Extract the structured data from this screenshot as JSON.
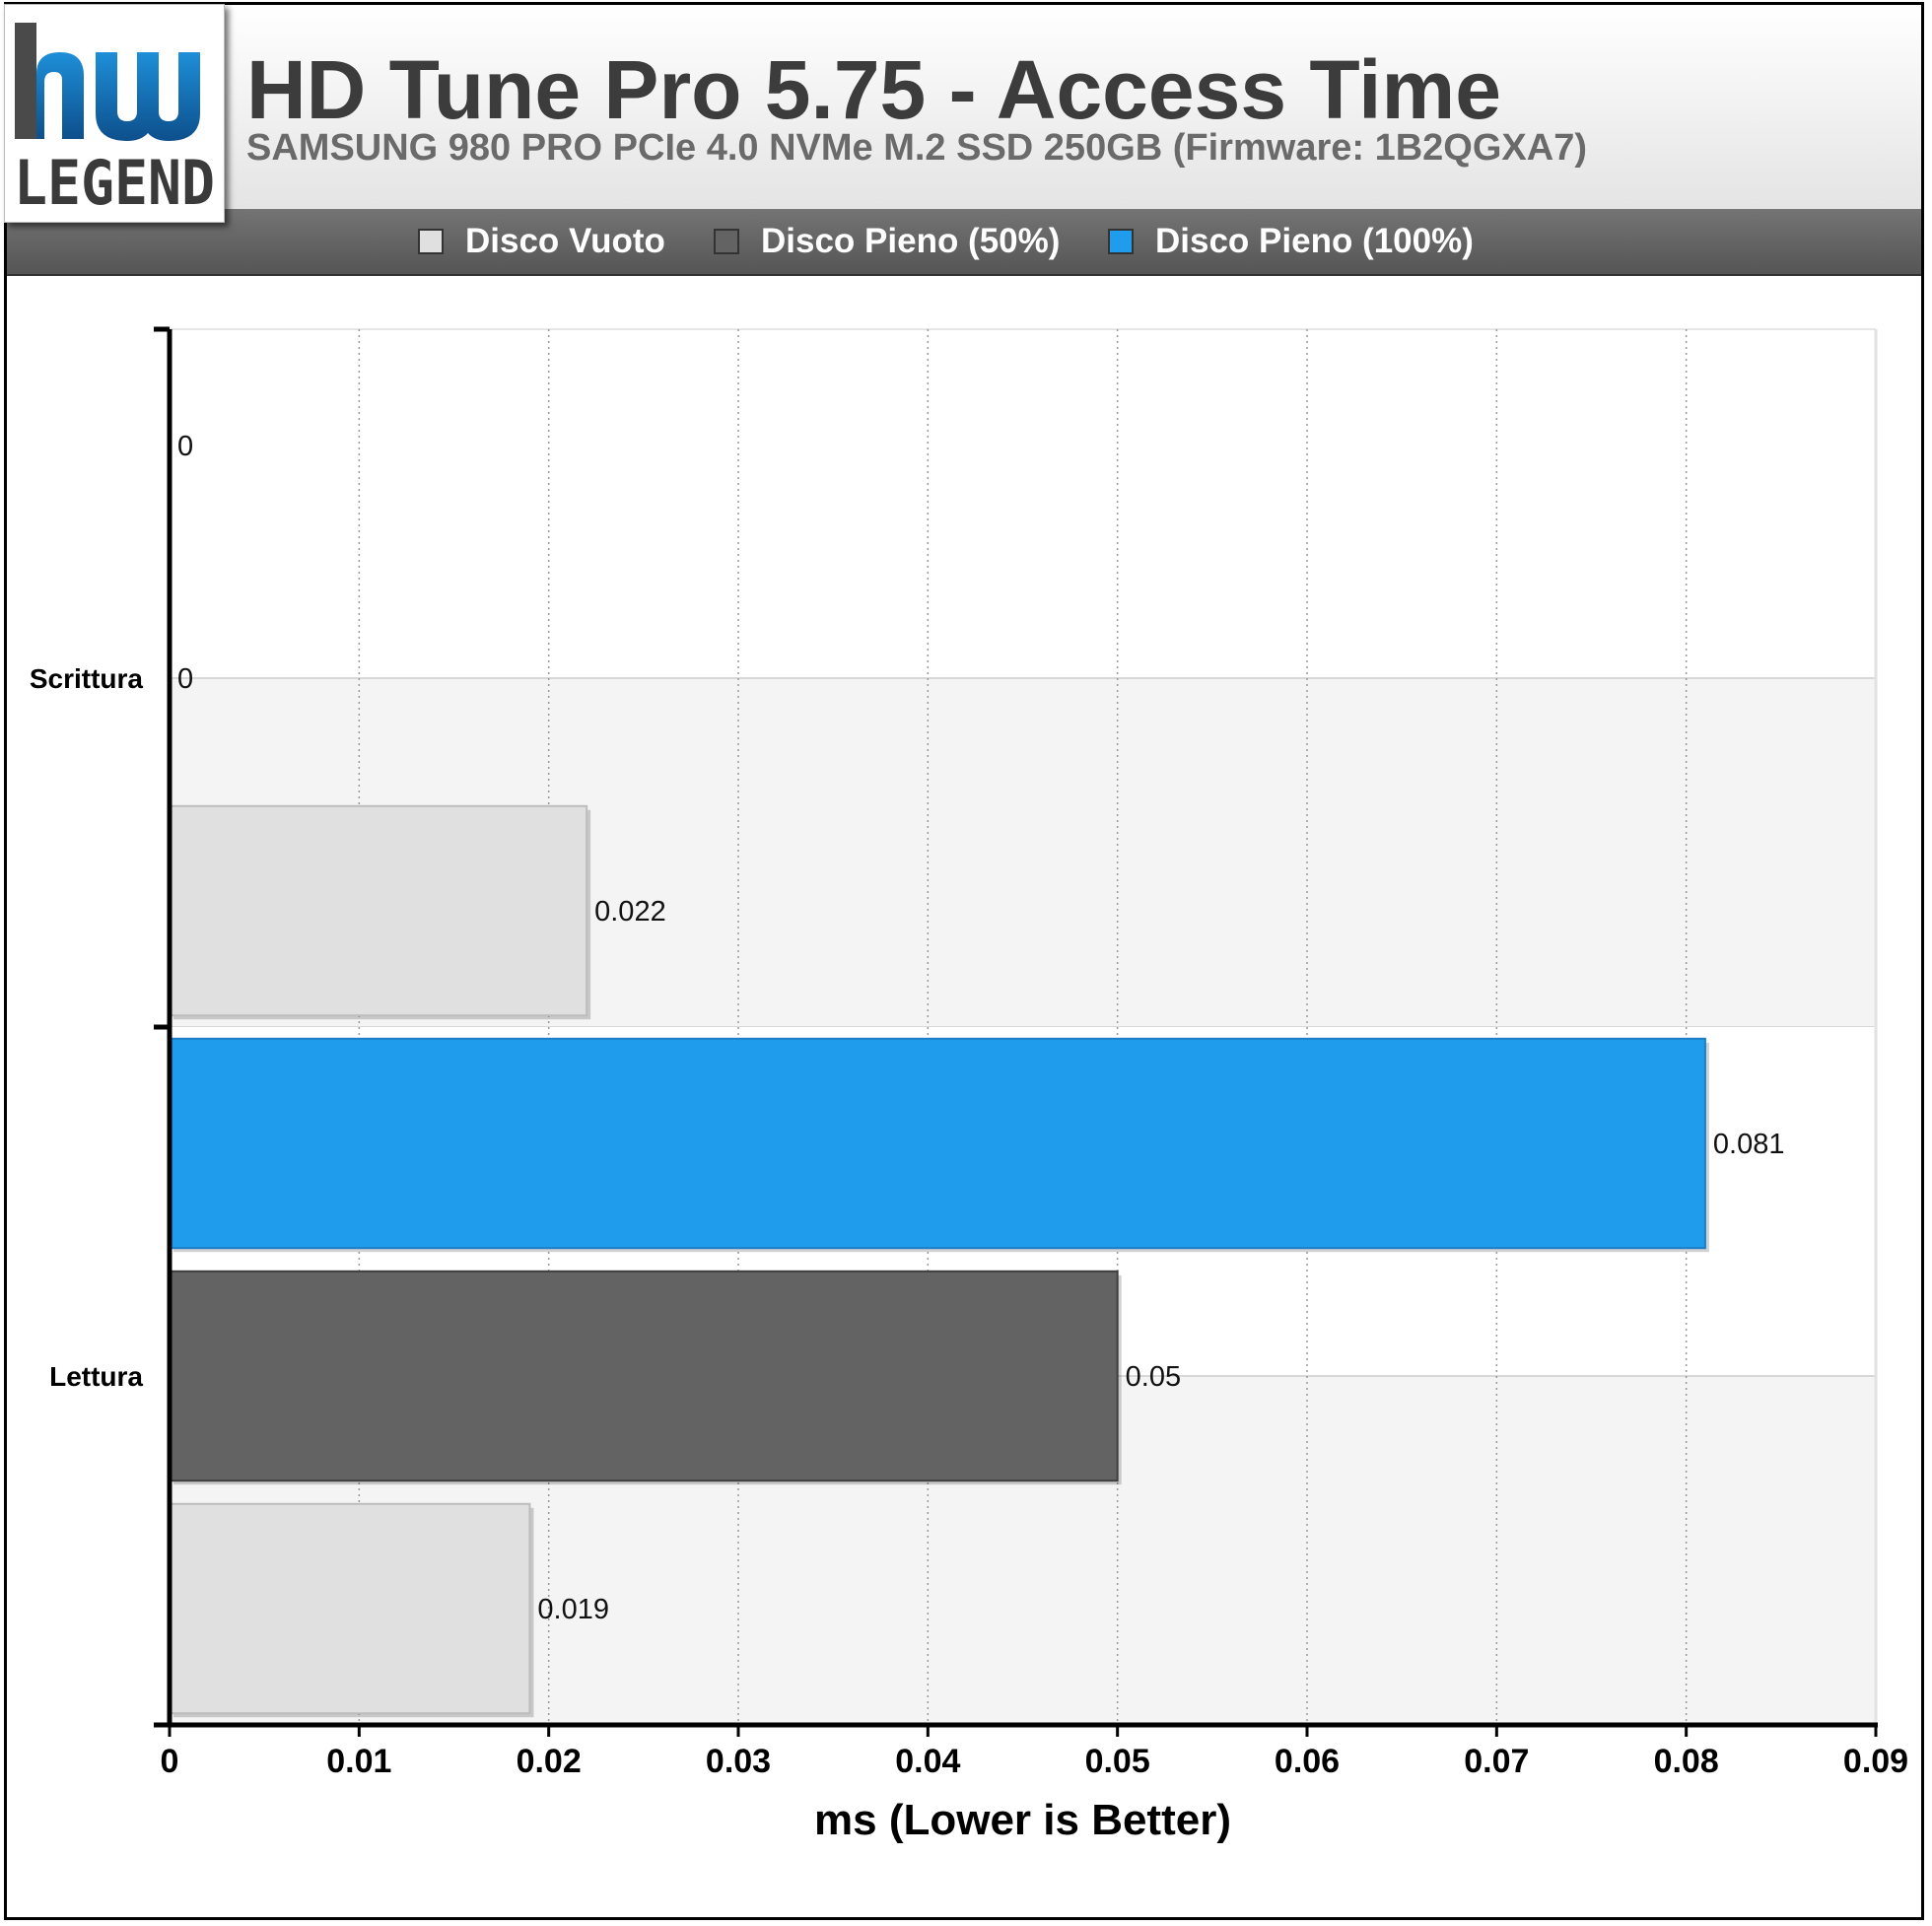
{
  "header": {
    "title": "HD Tune Pro 5.75 - Access Time",
    "subtitle": "SAMSUNG 980 PRO PCIe 4.0 NVMe M.2 SSD 250GB (Firmware: 1B2QGXA7)"
  },
  "logo": {
    "text_top": "hw",
    "text_bottom": "LEGEND"
  },
  "legend": [
    {
      "label": "Disco Vuoto",
      "color": "#e0e0e0"
    },
    {
      "label": "Disco Pieno (50%)",
      "color": "#636363"
    },
    {
      "label": "Disco Pieno (100%)",
      "color": "#209cec"
    }
  ],
  "colors": {
    "accent_blue": "#209cec",
    "dark_gray": "#636363",
    "light_gray": "#e0e0e0"
  },
  "chart_data": {
    "type": "bar",
    "orientation": "horizontal",
    "categories": [
      "Scrittura",
      "Lettura"
    ],
    "series": [
      {
        "name": "Disco Vuoto",
        "values": [
          0.022,
          0.019
        ],
        "labels": [
          "0.022",
          "0.019"
        ]
      },
      {
        "name": "Disco Pieno (50%)",
        "values": [
          0,
          0.05
        ],
        "labels": [
          "0",
          "0.05"
        ]
      },
      {
        "name": "Disco Pieno (100%)",
        "values": [
          0,
          0.081
        ],
        "labels": [
          "0",
          "0.081"
        ]
      }
    ],
    "xlabel": "ms (Lower is Better)",
    "xlim": [
      0,
      0.09
    ],
    "xticks": [
      "0",
      "0.01",
      "0.02",
      "0.03",
      "0.04",
      "0.05",
      "0.06",
      "0.07",
      "0.08",
      "0.09"
    ],
    "grid": true,
    "legend_position": "top"
  }
}
